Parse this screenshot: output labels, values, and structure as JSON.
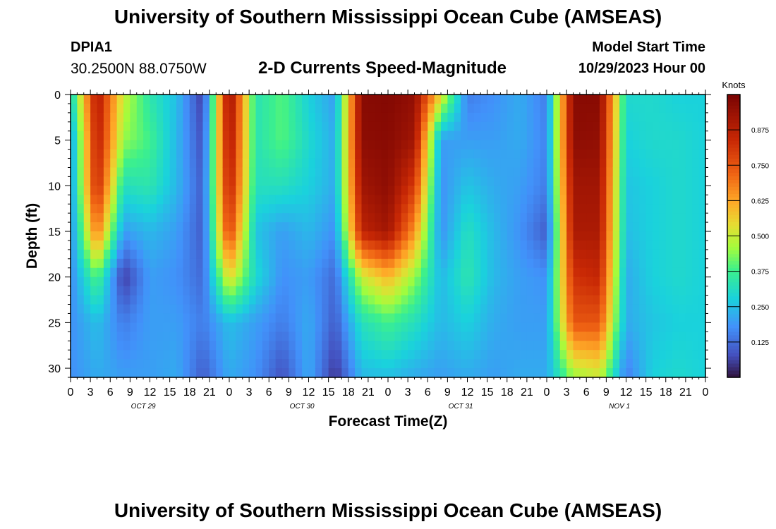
{
  "header": {
    "title": "University of Southern Mississippi Ocean Cube (AMSEAS)",
    "station": "DPIA1",
    "coords": "30.2500N  88.0750W",
    "subtitle": "2-D Currents Speed-Magnitude",
    "model_start_label": "Model Start Time",
    "model_start_value": "10/29/2023 Hour 00"
  },
  "footer": {
    "title": "University of Southern Mississippi Ocean Cube (AMSEAS)"
  },
  "chart_data": {
    "type": "heatmap",
    "title": "2-D Currents Speed-Magnitude",
    "xlabel": "Forecast Time(Z)",
    "ylabel": "Depth (ft)",
    "x_range": [
      0,
      96
    ],
    "y_range": [
      0,
      31
    ],
    "x_ticks": [
      0,
      3,
      6,
      9,
      12,
      15,
      18,
      21,
      24,
      27,
      30,
      33,
      36,
      39,
      42,
      45,
      48,
      51,
      54,
      57,
      60,
      63,
      66,
      69,
      72,
      75,
      78,
      81,
      84,
      87,
      90,
      93,
      96
    ],
    "x_tick_labels": [
      "0",
      "3",
      "6",
      "9",
      "12",
      "15",
      "18",
      "21",
      "0",
      "3",
      "6",
      "9",
      "12",
      "15",
      "18",
      "21",
      "0",
      "3",
      "6",
      "9",
      "12",
      "15",
      "18",
      "21",
      "0",
      "3",
      "6",
      "9",
      "12",
      "15",
      "18",
      "21",
      "0"
    ],
    "date_labels": [
      {
        "hour": 11,
        "label": "OCT 29"
      },
      {
        "hour": 35,
        "label": "OCT 30"
      },
      {
        "hour": 59,
        "label": "OCT 31"
      },
      {
        "hour": 83,
        "label": "NOV 1"
      }
    ],
    "y_ticks": [
      0,
      5,
      10,
      15,
      20,
      25,
      30
    ],
    "y_tick_labels": [
      "0",
      "5",
      "10",
      "15",
      "20",
      "25",
      "30"
    ],
    "colorbar": {
      "label": "Knots",
      "range": [
        0,
        1.0
      ],
      "ticks": [
        0.125,
        0.25,
        0.375,
        0.5,
        0.625,
        0.75,
        0.875
      ],
      "tick_labels": [
        "0.125",
        "0.250",
        "0.375",
        "0.500",
        "0.625",
        "0.750",
        "0.875"
      ]
    },
    "grid": {
      "times": [
        0,
        4,
        8,
        12,
        16,
        20,
        24,
        28,
        32,
        36,
        40,
        44,
        48,
        52,
        56,
        60,
        64,
        68,
        72,
        76,
        80,
        84,
        88,
        92,
        96
      ],
      "depths": [
        0,
        5,
        10,
        15,
        20,
        25,
        31
      ],
      "speed": [
        [
          0.28,
          0.9,
          0.5,
          0.34,
          0.25,
          0.05,
          0.95,
          0.33,
          0.4,
          0.28,
          0.2,
          0.97,
          0.98,
          0.95,
          0.55,
          0.15,
          0.18,
          0.22,
          0.15,
          0.97,
          0.97,
          0.3,
          0.3,
          0.28,
          0.28
        ],
        [
          0.18,
          0.88,
          0.45,
          0.38,
          0.24,
          0.08,
          0.92,
          0.33,
          0.4,
          0.3,
          0.22,
          0.96,
          0.97,
          0.92,
          0.2,
          0.2,
          0.2,
          0.22,
          0.16,
          0.96,
          0.95,
          0.28,
          0.3,
          0.3,
          0.28
        ],
        [
          0.18,
          0.85,
          0.32,
          0.34,
          0.24,
          0.1,
          0.88,
          0.32,
          0.32,
          0.28,
          0.22,
          0.92,
          0.96,
          0.8,
          0.18,
          0.26,
          0.22,
          0.2,
          0.15,
          0.92,
          0.92,
          0.26,
          0.28,
          0.3,
          0.28
        ],
        [
          0.17,
          0.7,
          0.2,
          0.24,
          0.2,
          0.1,
          0.8,
          0.26,
          0.2,
          0.24,
          0.18,
          0.86,
          0.92,
          0.65,
          0.18,
          0.32,
          0.24,
          0.18,
          0.1,
          0.9,
          0.9,
          0.25,
          0.28,
          0.3,
          0.28
        ],
        [
          0.17,
          0.4,
          0.05,
          0.2,
          0.18,
          0.12,
          0.55,
          0.3,
          0.18,
          0.2,
          0.12,
          0.5,
          0.6,
          0.45,
          0.24,
          0.34,
          0.24,
          0.2,
          0.18,
          0.82,
          0.85,
          0.22,
          0.28,
          0.3,
          0.28
        ],
        [
          0.18,
          0.25,
          0.15,
          0.2,
          0.2,
          0.15,
          0.25,
          0.2,
          0.15,
          0.22,
          0.1,
          0.32,
          0.38,
          0.32,
          0.24,
          0.28,
          0.22,
          0.2,
          0.2,
          0.75,
          0.75,
          0.22,
          0.26,
          0.28,
          0.28
        ],
        [
          0.18,
          0.22,
          0.2,
          0.2,
          0.22,
          0.1,
          0.22,
          0.18,
          0.08,
          0.22,
          0.04,
          0.24,
          0.25,
          0.22,
          0.2,
          0.22,
          0.2,
          0.22,
          0.22,
          0.45,
          0.5,
          0.15,
          0.28,
          0.3,
          0.28
        ]
      ]
    }
  }
}
